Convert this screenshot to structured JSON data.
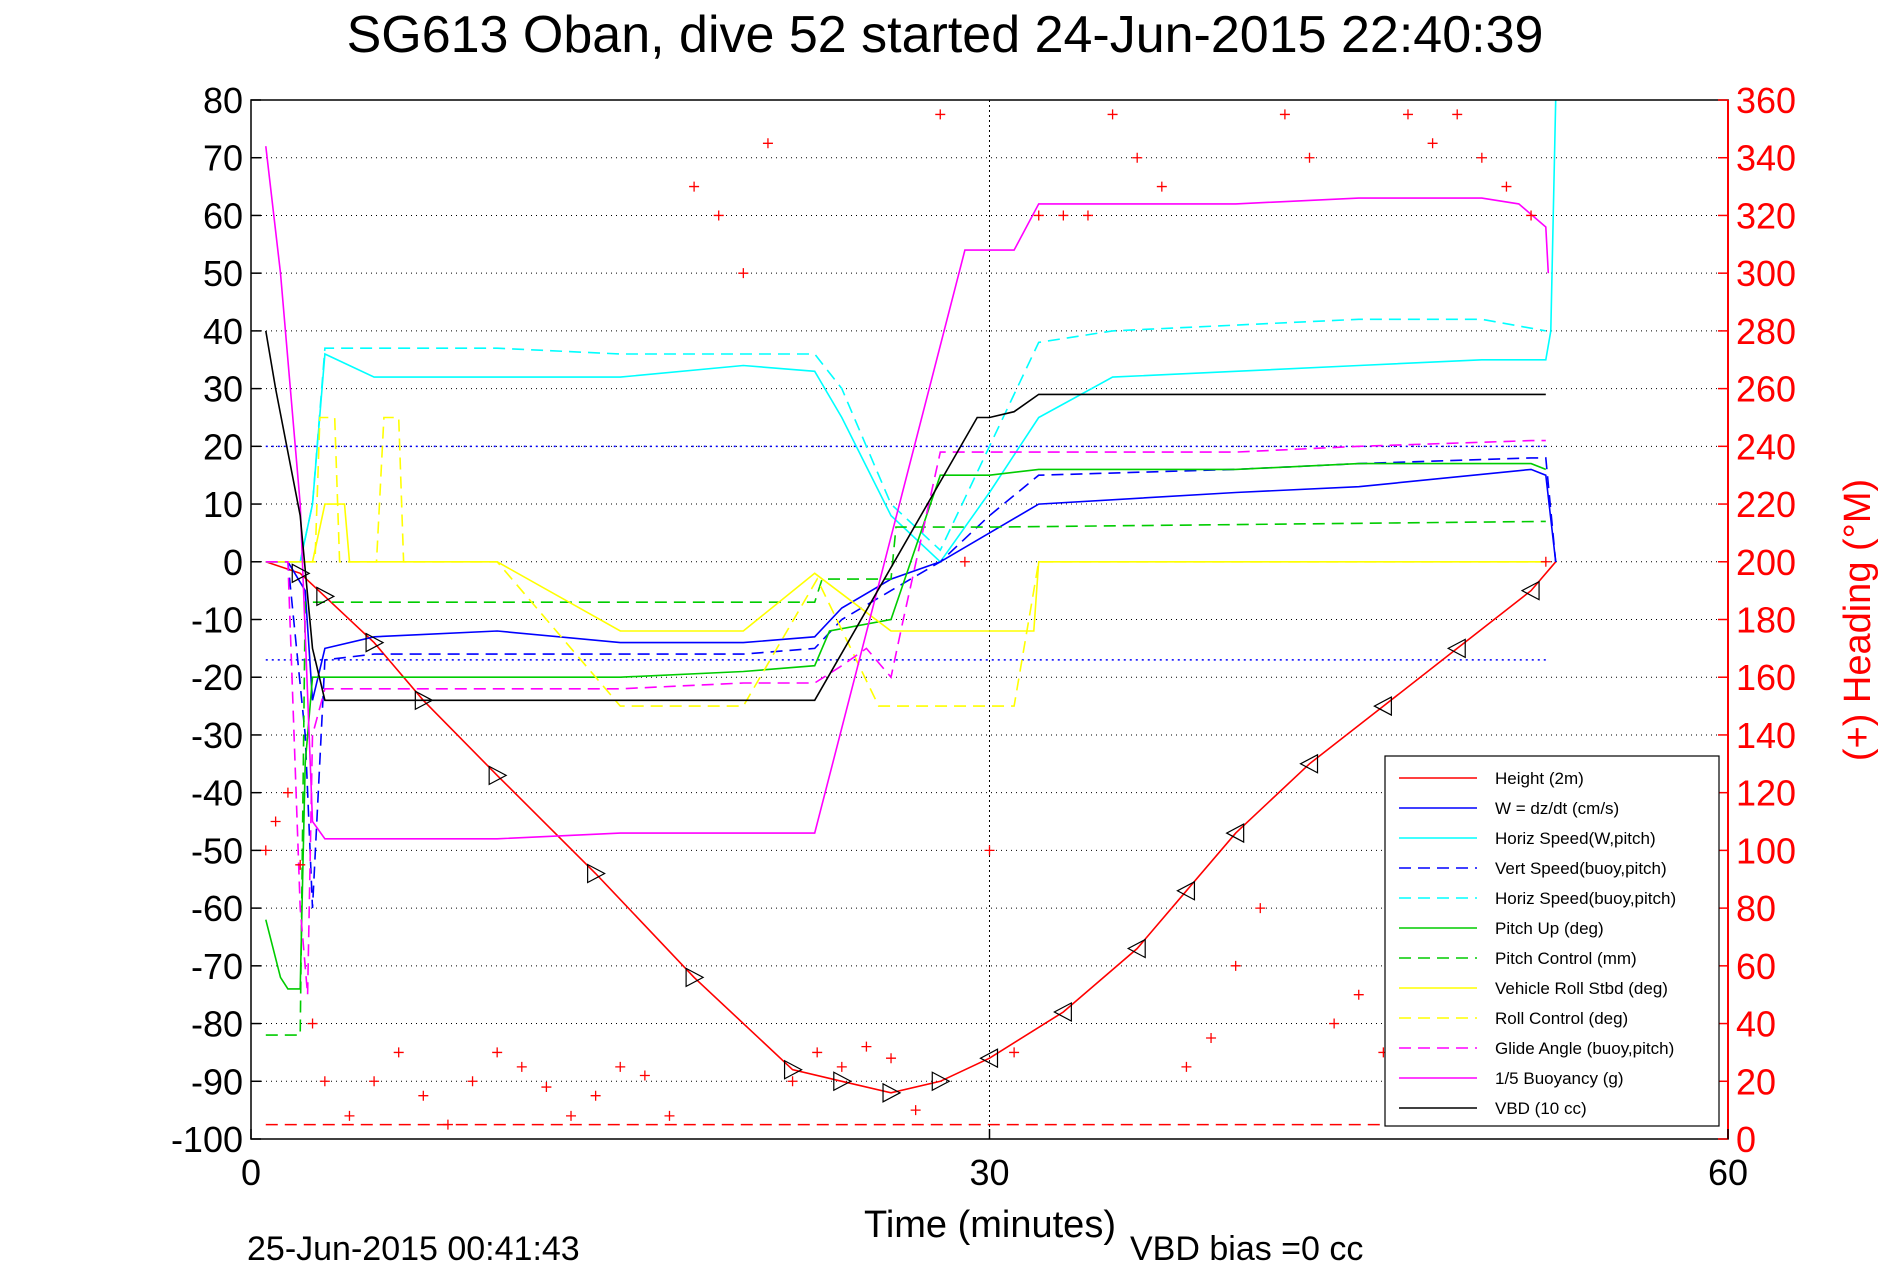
{
  "chart_data": {
    "type": "line",
    "title": "SG613 Oban, dive 52 started 24-Jun-2015 22:40:39",
    "xlabel": "Time (minutes)",
    "y2label": "(+) Heading (°M)",
    "footer_left": "25-Jun-2015 00:41:43",
    "footer_right": "VBD bias =0 cc",
    "xlim": [
      0,
      60
    ],
    "ylim": [
      -100,
      80
    ],
    "y2lim": [
      0,
      360
    ],
    "xticks": [
      "0",
      "30",
      "60"
    ],
    "yticks": [
      "80",
      "70",
      "60",
      "50",
      "40",
      "30",
      "20",
      "10",
      "0",
      "-10",
      "-20",
      "-30",
      "-40",
      "-50",
      "-60",
      "-70",
      "-80",
      "-90",
      "-100"
    ],
    "y2ticks": [
      "360",
      "340",
      "320",
      "300",
      "280",
      "260",
      "240",
      "220",
      "200",
      "180",
      "160",
      "140",
      "120",
      "100",
      "80",
      "60",
      "40",
      "20",
      "0"
    ],
    "legend_position": "bottom-right",
    "colors": {
      "axis_right": "#ff0000",
      "grid": "#000000",
      "ref_lines": "#0000ff"
    },
    "series": [
      {
        "name": "Height (2m)",
        "color": "#ff0000",
        "dash": "solid",
        "x": [
          0.6,
          2,
          3,
          5,
          7,
          10,
          14,
          18,
          22,
          24,
          26,
          28,
          30,
          33,
          36,
          38,
          40,
          43,
          46,
          49,
          52,
          53
        ],
        "y": [
          0,
          -2,
          -6,
          -14,
          -24,
          -37,
          -54,
          -72,
          -88,
          -90,
          -92,
          -90,
          -86,
          -78,
          -67,
          -57,
          -47,
          -35,
          -25,
          -15,
          -5,
          0
        ]
      },
      {
        "name": "W = dz/dt (cm/s)",
        "color": "#0000ff",
        "dash": "solid",
        "x": [
          0.6,
          1.5,
          2.2,
          2.5,
          3,
          5,
          10,
          15,
          20,
          22.9,
          24,
          26,
          28,
          30,
          32,
          40,
          45,
          52,
          52.6,
          53
        ],
        "y": [
          0,
          0,
          -5,
          -24,
          -15,
          -13,
          -12,
          -14,
          -14,
          -13,
          -8,
          -3,
          0,
          5,
          10,
          12,
          13,
          16,
          15,
          0
        ]
      },
      {
        "name": "Horiz Speed(W,pitch)",
        "color": "#00ffff",
        "dash": "solid",
        "x": [
          0.6,
          2,
          2.5,
          3,
          5,
          10,
          15,
          20,
          22.9,
          24,
          26,
          28,
          30,
          32,
          35,
          40,
          45,
          50,
          52.6,
          52.8,
          53
        ],
        "y": [
          0,
          0,
          10,
          36,
          32,
          32,
          32,
          34,
          33,
          25,
          8,
          0,
          12,
          25,
          32,
          33,
          34,
          35,
          35,
          40,
          80
        ]
      },
      {
        "name": "Vert Speed(buoy,pitch)",
        "color": "#0000ff",
        "dash": "dashed",
        "x": [
          0.6,
          1.5,
          2.2,
          2.5,
          3,
          5,
          10,
          15,
          20,
          22.9,
          24,
          26,
          28,
          30,
          32,
          40,
          45,
          52,
          52.6,
          53
        ],
        "y": [
          0,
          0,
          -30,
          -60,
          -17,
          -16,
          -16,
          -16,
          -16,
          -15,
          -10,
          -5,
          0,
          8,
          15,
          16,
          17,
          18,
          18,
          0
        ]
      },
      {
        "name": "Horiz Speed(buoy,pitch)",
        "color": "#00ffff",
        "dash": "dashed",
        "x": [
          0.6,
          2,
          2.5,
          3,
          5,
          10,
          15,
          20,
          22.9,
          24,
          26,
          28,
          30,
          32,
          35,
          40,
          45,
          50,
          52.6
        ],
        "y": [
          0,
          0,
          10,
          37,
          37,
          37,
          36,
          36,
          36,
          30,
          10,
          2,
          20,
          38,
          40,
          41,
          42,
          42,
          40
        ]
      },
      {
        "name": "Pitch Up (deg)",
        "color": "#00cc00",
        "dash": "solid",
        "x": [
          0.6,
          1.2,
          1.5,
          2,
          2.2,
          2.5,
          3,
          5,
          10,
          15,
          20,
          22.9,
          23.5,
          26,
          28,
          30,
          32,
          40,
          45,
          52,
          52.6
        ],
        "y": [
          -62,
          -72,
          -74,
          -74,
          -35,
          -20,
          -20,
          -20,
          -20,
          -20,
          -19,
          -18,
          -12,
          -10,
          15,
          15,
          16,
          16,
          17,
          17,
          16
        ]
      },
      {
        "name": "Pitch Control (mm)",
        "color": "#00cc00",
        "dash": "dashed",
        "x": [
          0.6,
          2,
          2.2,
          2.5,
          3,
          22.9,
          23.2,
          26,
          26.2,
          30,
          52.6
        ],
        "y": [
          -82,
          -82,
          -7,
          -7,
          -7,
          -7,
          -3,
          -3,
          6,
          6,
          7
        ]
      },
      {
        "name": "Vehicle Roll Stbd (deg)",
        "color": "#ffff00",
        "dash": "solid",
        "x": [
          0.6,
          2,
          2.5,
          3,
          3.2,
          3.8,
          4,
          5,
          10,
          15,
          20,
          22.9,
          26,
          30,
          31,
          31.8,
          32,
          52.6
        ],
        "y": [
          0,
          0,
          0,
          10,
          10,
          10,
          0,
          0,
          0,
          -12,
          -12,
          -2,
          -12,
          -12,
          -12,
          -12,
          0,
          0
        ]
      },
      {
        "name": "Roll Control (deg)",
        "color": "#ffff00",
        "dash": "dashed",
        "x": [
          0.6,
          2.2,
          2.6,
          2.8,
          3.4,
          3.6,
          4.2,
          4.4,
          5.1,
          5.4,
          6,
          6.2,
          10,
          15,
          20,
          23,
          25.5,
          26.5,
          30,
          31,
          32,
          52.6
        ],
        "y": [
          0,
          0,
          0,
          25,
          25,
          0,
          0,
          0,
          0,
          25,
          25,
          0,
          0,
          -25,
          -25,
          -3,
          -25,
          -25,
          -25,
          -25,
          0,
          0
        ]
      },
      {
        "name": "Glide Angle (buoy,pitch)",
        "color": "#ff00ff",
        "dash": "dashed",
        "x": [
          0.6,
          1.5,
          2,
          2.3,
          2.5,
          3,
          5,
          10,
          15,
          20,
          22.9,
          24,
          25,
          26,
          26.5,
          28,
          30,
          32,
          40,
          45,
          52,
          52.6
        ],
        "y": [
          0,
          0,
          -60,
          -75,
          -30,
          -22,
          -22,
          -22,
          -22,
          -21,
          -21,
          -18,
          -15,
          -20,
          -10,
          19,
          19,
          19,
          19,
          20,
          21,
          21
        ]
      },
      {
        "name": "1/5 Buoyancy (g)",
        "color": "#ff00ff",
        "dash": "solid",
        "x": [
          0.6,
          1.2,
          2,
          2.5,
          3,
          5,
          10,
          15,
          20,
          22.9,
          29,
          29.5,
          31,
          31.5,
          32,
          35,
          40,
          45,
          50,
          51.5,
          52.6,
          52.7
        ],
        "y": [
          72,
          50,
          10,
          -45,
          -48,
          -48,
          -48,
          -47,
          -47,
          -47,
          54,
          54,
          54,
          58,
          62,
          62,
          62,
          63,
          63,
          62,
          58,
          50
        ]
      },
      {
        "name": "VBD (10 cc)",
        "color": "#000000",
        "dash": "solid",
        "x": [
          0.6,
          1,
          2,
          2.5,
          3,
          5,
          10,
          15,
          20,
          22.9,
          29.5,
          30,
          31,
          32,
          35,
          40,
          45,
          52.6
        ],
        "y": [
          40,
          30,
          8,
          -15,
          -24,
          -24,
          -24,
          -24,
          -24,
          -24,
          25,
          25,
          26,
          29,
          29,
          29,
          29,
          29
        ]
      }
    ],
    "heading_series": {
      "name": "Heading (°M)",
      "color": "#ff0000",
      "marker": "+",
      "x": [
        0.6,
        1,
        1.5,
        2,
        2.5,
        3,
        4,
        5,
        6,
        7,
        8,
        9,
        10,
        11,
        12,
        13,
        14,
        15,
        16,
        17,
        18,
        19,
        20,
        21,
        22,
        23,
        24,
        25,
        26,
        27,
        28,
        29,
        30,
        31,
        32,
        33,
        34,
        35,
        36,
        37,
        38,
        39,
        40,
        41,
        42,
        43,
        44,
        45,
        46,
        47,
        48,
        49,
        50,
        51,
        52,
        52.6
      ],
      "y": [
        100,
        110,
        120,
        95,
        40,
        20,
        8,
        20,
        30,
        15,
        5,
        20,
        30,
        25,
        18,
        8,
        15,
        25,
        22,
        8,
        330,
        320,
        300,
        345,
        20,
        30,
        25,
        32,
        28,
        10,
        355,
        200,
        100,
        30,
        320,
        320,
        320,
        355,
        340,
        330,
        25,
        35,
        60,
        80,
        355,
        340,
        40,
        50,
        30,
        355,
        345,
        355,
        340,
        330,
        320,
        200
      ]
    },
    "ref_lines": [
      {
        "y": 20,
        "color": "#0000ff",
        "dash": "dotted"
      },
      {
        "y": -17,
        "color": "#0000ff",
        "dash": "dotted"
      },
      {
        "y2": 5,
        "color": "#ff0000",
        "dash": "dashed"
      }
    ],
    "apogee_x": 30
  }
}
